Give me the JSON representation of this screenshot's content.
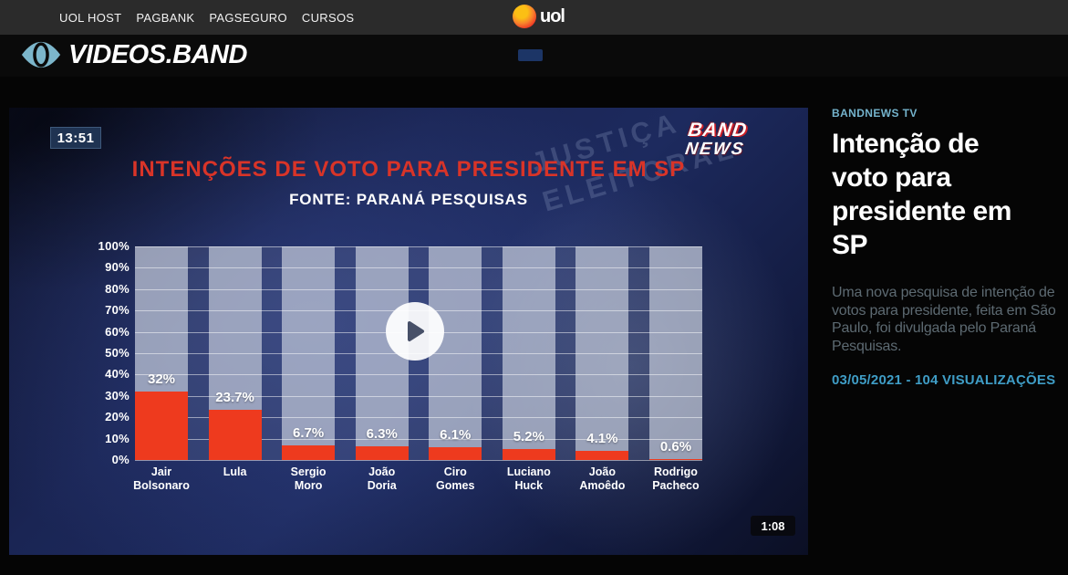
{
  "topbar": {
    "links": [
      "UOL HOST",
      "PAGBANK",
      "PAGSEGURO",
      "CURSOS"
    ],
    "uol_logo_text": "uol"
  },
  "header": {
    "brand": "VIDEOS.BAND"
  },
  "player": {
    "timestamp": "13:51",
    "channel_logo_line1": "BAND",
    "channel_logo_line2": "NEWS",
    "watermark_line1": "JUSTIÇA",
    "watermark_line2": "ELEITORAL",
    "duration": "1:08"
  },
  "chart_data": {
    "type": "bar",
    "title": "INTENÇÕES DE VOTO PARA PRESIDENTE EM SP",
    "subtitle": "FONTE: PARANÁ PESQUISAS",
    "categories": [
      [
        "Jair",
        "Bolsonaro"
      ],
      [
        "Lula"
      ],
      [
        "Sergio",
        "Moro"
      ],
      [
        "João",
        "Doria"
      ],
      [
        "Ciro",
        "Gomes"
      ],
      [
        "Luciano",
        "Huck"
      ],
      [
        "João",
        "Amoêdo"
      ],
      [
        "Rodrigo",
        "Pacheco"
      ]
    ],
    "values": [
      32,
      23.7,
      6.7,
      6.3,
      6.1,
      5.2,
      4.1,
      0.6
    ],
    "labels": [
      "32%",
      "23.7%",
      "6.7%",
      "6.3%",
      "6.1%",
      "5.2%",
      "4.1%",
      "0.6%"
    ],
    "y_ticks": [
      "0%",
      "10%",
      "20%",
      "30%",
      "40%",
      "50%",
      "60%",
      "70%",
      "80%",
      "90%",
      "100%"
    ],
    "ylim": [
      0,
      100
    ],
    "grid": true,
    "legend": null,
    "bar_color": "#ee3a1e"
  },
  "sidebar": {
    "kicker": "BANDNEWS TV",
    "title": "Intenção de voto para presidente em SP",
    "description": "Uma nova pesquisa de intenção de votos para presidente, feita em São Paulo, foi divulgada pelo Paraná Pesquisas.",
    "meta": "03/05/2021 - 104 VISUALIZAÇÕES"
  },
  "colors": {
    "accent-red": "#d93428",
    "bar-red": "#ee3a1e",
    "kicker-blue": "#74b3cc",
    "meta-blue": "#3f9dc6",
    "band-eye-blue": "#7cb6cb"
  }
}
